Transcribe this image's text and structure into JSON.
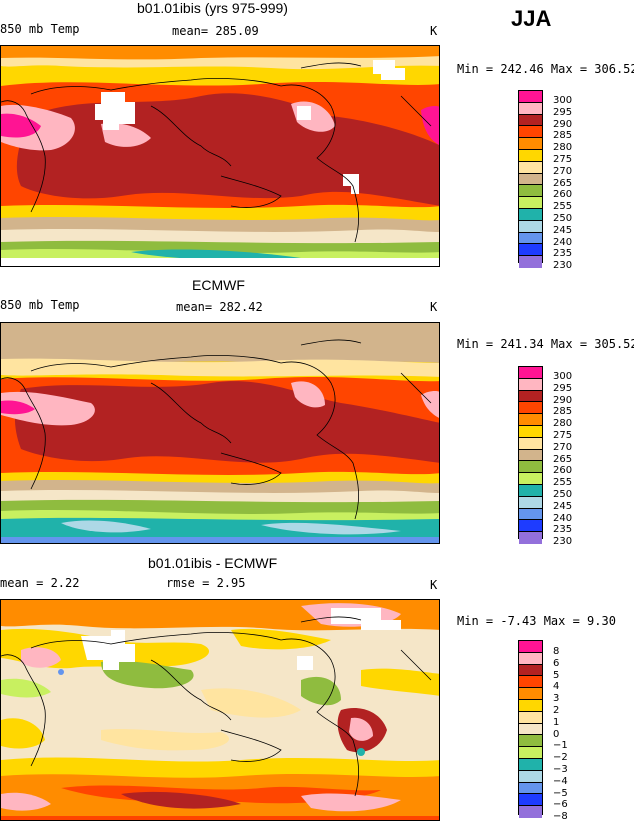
{
  "season": "JJA",
  "panels": [
    {
      "title": "b01.01ibis (yrs 975-999)",
      "field_label": "850 mb Temp",
      "mean_label": "mean= 285.09",
      "units": "K",
      "minmax": "Min = 242.46 Max = 306.52",
      "legend": [
        "300",
        "295",
        "290",
        "285",
        "280",
        "275",
        "270",
        "265",
        "260",
        "255",
        "250",
        "245",
        "240",
        "235",
        "230"
      ]
    },
    {
      "title": "ECMWF",
      "field_label": "850 mb Temp",
      "mean_label": "mean= 282.42",
      "units": "K",
      "minmax": "Min = 241.34 Max = 305.52",
      "legend": [
        "300",
        "295",
        "290",
        "285",
        "280",
        "275",
        "270",
        "265",
        "260",
        "255",
        "250",
        "245",
        "240",
        "235",
        "230"
      ]
    },
    {
      "title": "b01.01ibis - ECMWF",
      "field_label": "mean =   2.22",
      "mean_label": "rmse =   2.95",
      "units": "K",
      "minmax": "Min =  -7.43 Max =   9.30",
      "legend": [
        "8",
        "6",
        "5",
        "4",
        "3",
        "2",
        "1",
        "0",
        "−1",
        "−2",
        "−3",
        "−4",
        "−5",
        "−6",
        "−8"
      ]
    }
  ],
  "colors": {
    "abs_scale": [
      "#ff1493",
      "#ffb6c1",
      "#b22222",
      "#ff4500",
      "#ff8c00",
      "#ffd700",
      "#ffe4a0",
      "#d2b48c",
      "#f5e6c8",
      "#8fbc3f",
      "#c8f060",
      "#20b2aa",
      "#add8e6",
      "#6495ed",
      "#1e3cff",
      "#0000cd",
      "#9370db"
    ],
    "diff_scale": [
      "#ff1493",
      "#ffb6c1",
      "#b22222",
      "#ff4500",
      "#ff8c00",
      "#ffd700",
      "#ffe4a0",
      "#f5e6c8",
      "#8fbc3f",
      "#c8f060",
      "#20b2aa",
      "#add8e6",
      "#6495ed",
      "#1e3cff",
      "#0000cd",
      "#9370db"
    ]
  }
}
